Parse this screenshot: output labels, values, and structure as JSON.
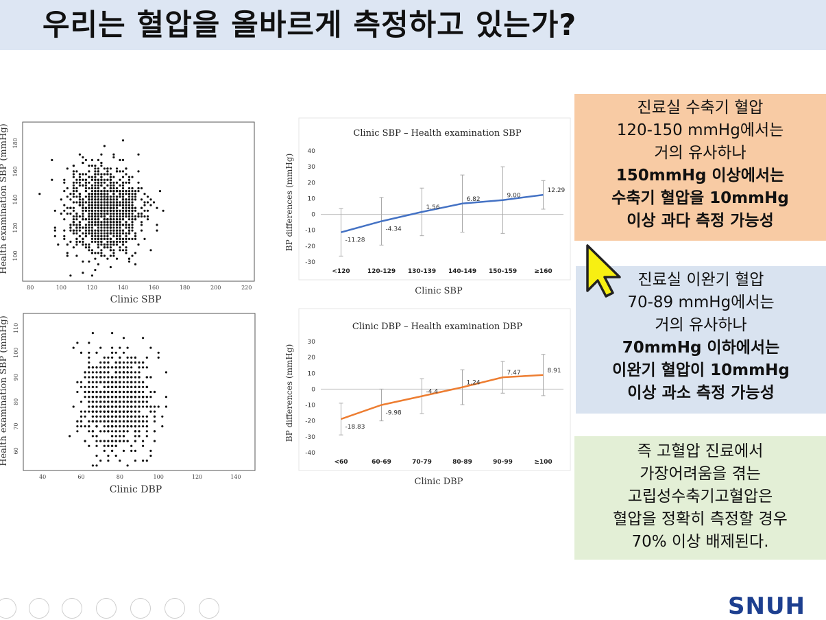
{
  "slide": {
    "title": "우리는 혈압을 올바르게 측정하고 있는가?",
    "logo_text": "SNUH"
  },
  "chart_data": [
    {
      "type": "scatter",
      "id": "sbp-scatter",
      "title": "",
      "xlabel": "Clinic SBP",
      "ylabel": "Health examination SBP (mmHg)",
      "xlim": [
        75,
        225
      ],
      "ylim": [
        82,
        195
      ],
      "xticks": [
        80,
        100,
        120,
        140,
        160,
        180,
        200,
        220
      ],
      "yticks": [
        100,
        120,
        140,
        160,
        180
      ],
      "point_color": "#111111",
      "center": [
        128,
        132
      ],
      "spread": [
        12,
        16
      ]
    },
    {
      "type": "scatter",
      "id": "dbp-scatter",
      "title": "",
      "xlabel": "Clinic DBP",
      "ylabel": "Health examination SBP (mmHg)",
      "xlim": [
        30,
        150
      ],
      "ylim": [
        52,
        116
      ],
      "xticks": [
        40,
        60,
        80,
        100,
        120,
        140
      ],
      "yticks": [
        60,
        70,
        80,
        90,
        100,
        110
      ],
      "point_color": "#111111",
      "center": [
        78,
        80
      ],
      "spread": [
        9,
        10
      ]
    },
    {
      "type": "line",
      "id": "sbp-diff",
      "title": "Clinic SBP – Health examination SBP",
      "xlabel": "Clinic SBP",
      "ylabel": "BP differences (mmHg)",
      "categories": [
        "<120",
        "120-129",
        "130-139",
        "140-149",
        "150-159",
        "≥160"
      ],
      "series": [
        {
          "name": "",
          "values": [
            -11.28,
            -4.34,
            1.56,
            6.82,
            9.0,
            12.29
          ],
          "labels": [
            "-11.28",
            "-4.34",
            "1.56",
            "6.82",
            "9.00",
            "12.29"
          ],
          "err": [
            15,
            15,
            15,
            18,
            21,
            9
          ],
          "color": "#4472c4"
        }
      ],
      "ylim": [
        -30,
        40
      ],
      "yticks": [
        -30,
        -20,
        -10,
        0,
        10,
        20,
        30,
        40
      ]
    },
    {
      "type": "line",
      "id": "dbp-diff",
      "title": "Clinic DBP – Health examination DBP",
      "xlabel": "Clinic DBP",
      "ylabel": "BP differences (mmHg)",
      "categories": [
        "<60",
        "60-69",
        "70-79",
        "80-89",
        "90-99",
        "≥100"
      ],
      "series": [
        {
          "name": "",
          "values": [
            -18.83,
            -9.98,
            -4.4,
            1.24,
            7.47,
            8.91
          ],
          "labels": [
            "-18.83",
            "-9.98",
            "-4.4",
            "1.24",
            "7.47",
            "8.91"
          ],
          "err": [
            10,
            10,
            11,
            11,
            10,
            13
          ],
          "color": "#ed7d31"
        }
      ],
      "ylim": [
        -40,
        30
      ],
      "yticks": [
        -40,
        -30,
        -20,
        -10,
        0,
        10,
        20,
        30
      ]
    }
  ],
  "boxes": {
    "box1": {
      "line1": "진료실 수축기 혈압",
      "line2": "120-150 mmHg에서는",
      "line3": "거의 유사하나",
      "line4": "150mmHg 이상에서는",
      "line5": "수축기 혈압을 10mmHg",
      "line6": "이상 과다 측정 가능성"
    },
    "box2": {
      "line1": "진료실 이완기 혈압",
      "line2": "70-89 mmHg에서는",
      "line3": "거의 유사하나",
      "line4": "70mmHg 이하에서는",
      "line5": "이완기 혈압이 10mmHg",
      "line6": "이상 과소 측정 가능성"
    },
    "box3": {
      "line1": "즉 고혈압 진료에서",
      "line2": "가장어려움을 겪는",
      "line3": "고립성수축기고혈압은",
      "line4": "혈압을 정확히 측정할 경우",
      "line5": "70% 이상 배제된다."
    }
  },
  "icons": {
    "pointer": "cursor-arrow-icon",
    "toolbar": [
      "prev-icon",
      "play-icon",
      "pen-icon",
      "slides-icon",
      "zoom-icon",
      "screen-icon",
      "more-icon"
    ]
  }
}
